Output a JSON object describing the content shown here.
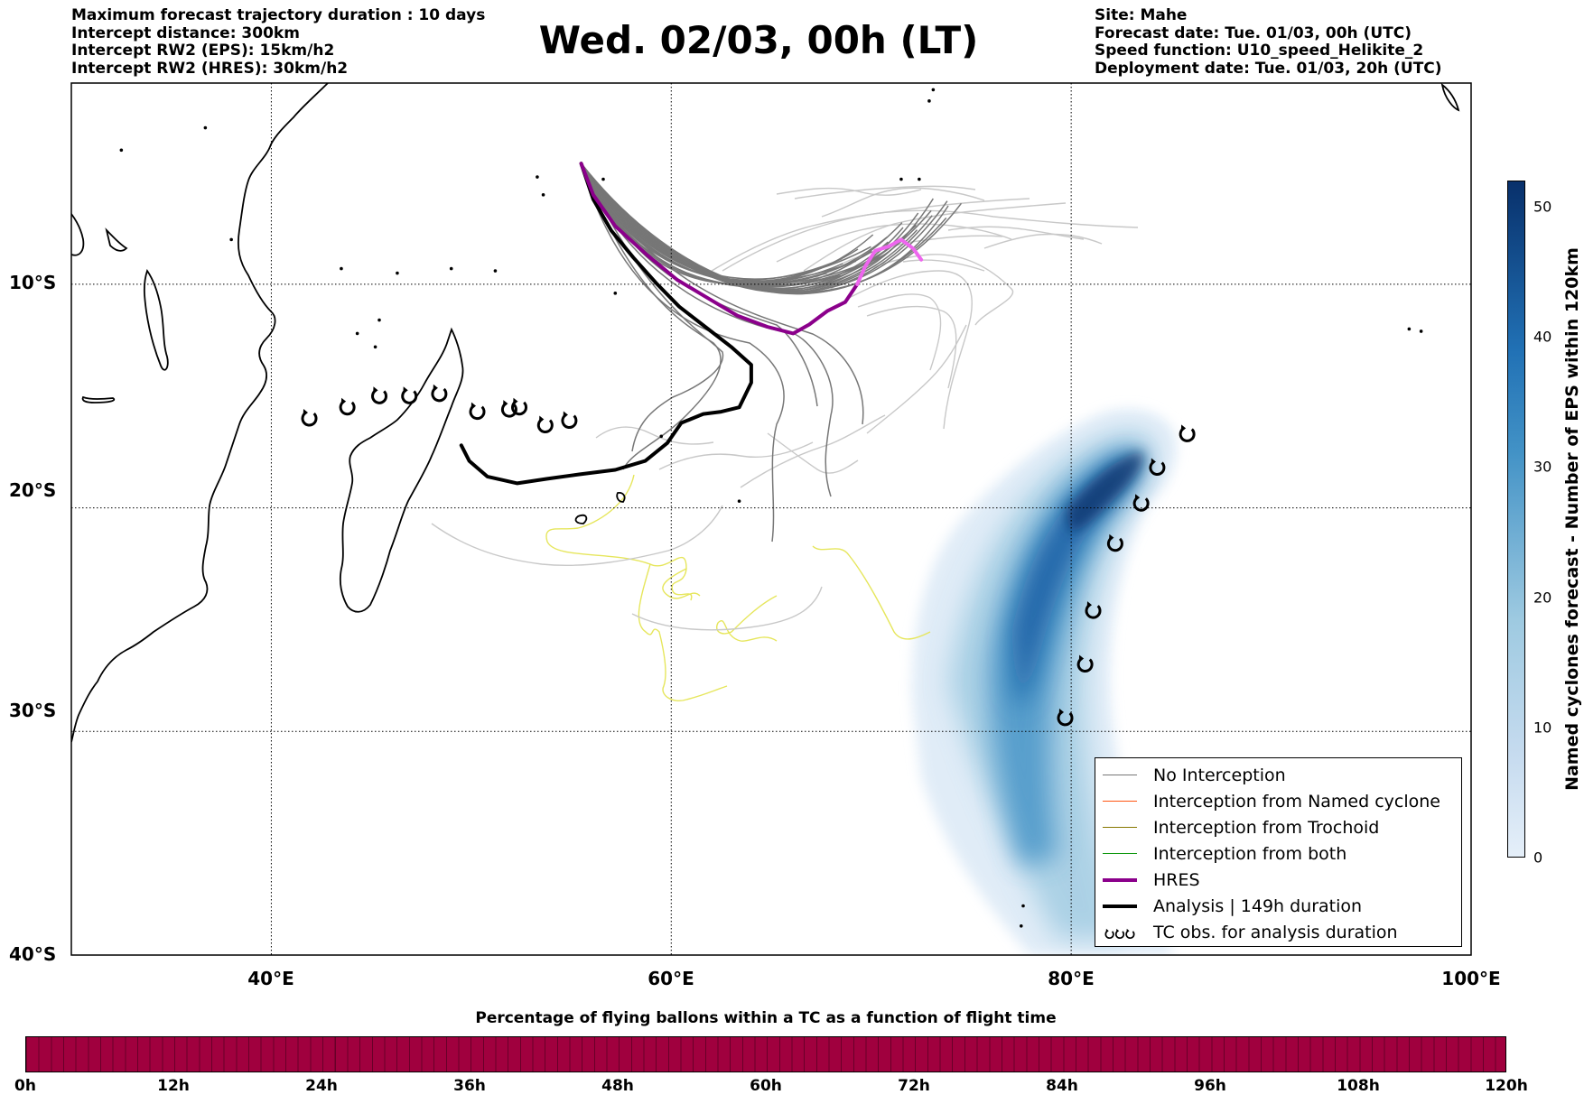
{
  "header_left": [
    "Maximum forecast trajectory duration : 10 days",
    "Intercept distance: 300km",
    "Intercept RW2 (EPS):  15km/h2",
    "Intercept RW2 (HRES): 30km/h2"
  ],
  "title": "Wed. 02/03, 00h (LT)",
  "header_right": [
    "Site: Mahe",
    "Forecast date: Tue. 01/03, 00h (UTC)",
    "Speed function: U10_speed_Helikite_2",
    "Deployment date: Tue. 01/03, 20h (UTC)"
  ],
  "map": {
    "lon_range": [
      30,
      100
    ],
    "lat_range": [
      -40,
      -1
    ],
    "lat_labels": [
      "10°S",
      "20°S",
      "30°S",
      "40°S"
    ],
    "lat_values": [
      -10,
      -20,
      -30,
      -40
    ],
    "lon_labels": [
      "40°E",
      "60°E",
      "80°E",
      "100°E"
    ],
    "lon_values": [
      40,
      60,
      80,
      100
    ],
    "release_site": {
      "name": "Mahe",
      "lon": 55.5,
      "lat": -4.6
    },
    "colors": {
      "no_interception": "#777777",
      "named_cyclone": "#ff5511",
      "trochoid": "#887700",
      "both": "#119911",
      "hres": "#8b008b",
      "hres_tail": "#ee66ee",
      "analysis": "#000000",
      "old_tracks_light": "#c8c8c8",
      "yellow_tracks": "#e6e65c",
      "density": "#08306b"
    }
  },
  "legend": {
    "items": [
      {
        "label": "No Interception",
        "color": "#777777",
        "width": 1
      },
      {
        "label": "Interception from Named cyclone",
        "color": "#ff5511",
        "width": 1
      },
      {
        "label": "Interception from Trochoid",
        "color": "#887700",
        "width": 1
      },
      {
        "label": "Interception from both",
        "color": "#119911",
        "width": 1
      },
      {
        "label": "HRES",
        "color": "#8b008b",
        "width": 4
      },
      {
        "label": "Analysis | 149h duration",
        "color": "#000000",
        "width": 4
      }
    ],
    "tc_label": "TC obs. for analysis duration"
  },
  "right_colorbar": {
    "label": "Named cyclones forecast - Number of EPS within 120km",
    "ticks": [
      "0",
      "10",
      "20",
      "30",
      "40",
      "50"
    ],
    "tick_values": [
      0,
      10,
      20,
      30,
      40,
      50
    ],
    "max": 52,
    "color_low": "#e5eff9",
    "color_high": "#08306b"
  },
  "bottom_colorbar": {
    "title": "Percentage of flying ballons within a TC as a function of flight time",
    "ticks": [
      "0h",
      "12h",
      "24h",
      "36h",
      "48h",
      "60h",
      "72h",
      "84h",
      "96h",
      "108h",
      "120h"
    ],
    "tick_hours": [
      0,
      12,
      24,
      36,
      48,
      60,
      72,
      84,
      96,
      108,
      120
    ],
    "fill_color": "#a0003e"
  },
  "tc_obs": [
    {
      "lon": 41.9,
      "lat": -16.0
    },
    {
      "lon": 43.8,
      "lat": -15.5
    },
    {
      "lon": 45.4,
      "lat": -15.0
    },
    {
      "lon": 46.9,
      "lat": -15.0
    },
    {
      "lon": 48.4,
      "lat": -14.9
    },
    {
      "lon": 50.3,
      "lat": -15.7
    },
    {
      "lon": 51.9,
      "lat": -15.6
    },
    {
      "lon": 52.4,
      "lat": -15.5
    },
    {
      "lon": 53.7,
      "lat": -16.3
    },
    {
      "lon": 54.9,
      "lat": -16.1
    },
    {
      "lon": 79.7,
      "lat": -29.4
    },
    {
      "lon": 80.7,
      "lat": -27.0
    },
    {
      "lon": 81.1,
      "lat": -24.6
    },
    {
      "lon": 82.2,
      "lat": -21.6
    },
    {
      "lon": 83.5,
      "lat": -19.8
    },
    {
      "lon": 84.3,
      "lat": -18.2
    },
    {
      "lon": 85.8,
      "lat": -16.7
    }
  ],
  "analysis_track": [
    [
      55.5,
      -4.6
    ],
    [
      56.1,
      -6.2
    ],
    [
      57.0,
      -7.6
    ],
    [
      58.1,
      -8.8
    ],
    [
      59.3,
      -10.0
    ],
    [
      60.4,
      -11.0
    ],
    [
      61.7,
      -11.9
    ],
    [
      63.0,
      -12.8
    ],
    [
      64.0,
      -13.6
    ],
    [
      64.0,
      -14.4
    ],
    [
      63.4,
      -15.5
    ],
    [
      62.5,
      -15.7
    ],
    [
      61.6,
      -15.8
    ],
    [
      60.5,
      -16.2
    ],
    [
      59.8,
      -17.1
    ],
    [
      58.7,
      -17.9
    ],
    [
      57.2,
      -18.3
    ],
    [
      55.4,
      -18.5
    ],
    [
      53.8,
      -18.7
    ],
    [
      52.3,
      -18.9
    ],
    [
      50.8,
      -18.6
    ],
    [
      49.9,
      -17.9
    ],
    [
      49.5,
      -17.2
    ]
  ],
  "hres_track": [
    [
      55.5,
      -4.6
    ],
    [
      56.1,
      -6.0
    ],
    [
      57.2,
      -7.4
    ],
    [
      58.8,
      -8.7
    ],
    [
      60.3,
      -9.8
    ],
    [
      61.8,
      -10.6
    ],
    [
      63.3,
      -11.4
    ],
    [
      64.8,
      -11.9
    ],
    [
      66.1,
      -12.2
    ],
    [
      66.9,
      -11.8
    ],
    [
      67.8,
      -11.2
    ],
    [
      68.7,
      -10.8
    ],
    [
      69.3,
      -10.0
    ]
  ],
  "hres_tail": [
    [
      69.3,
      -10.0
    ],
    [
      69.7,
      -9.2
    ],
    [
      70.2,
      -8.5
    ],
    [
      70.9,
      -8.3
    ],
    [
      71.5,
      -8.0
    ],
    [
      72.1,
      -8.4
    ],
    [
      72.5,
      -8.9
    ]
  ]
}
